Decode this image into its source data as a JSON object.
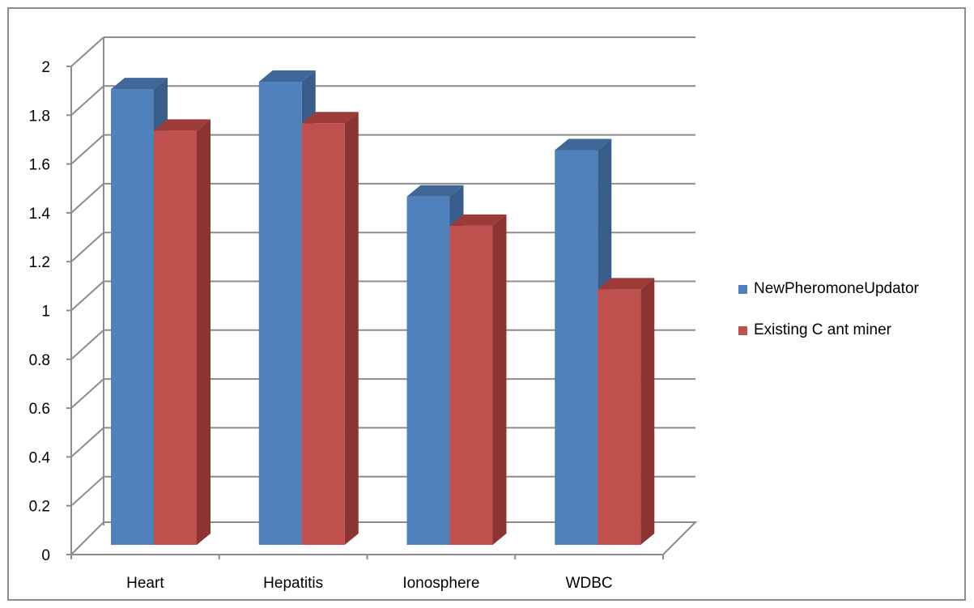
{
  "chart_data": {
    "type": "bar",
    "title": "",
    "xlabel": "",
    "ylabel": "",
    "categories": [
      "Heart",
      "Hepatitis",
      "Ionosphere",
      "WDBC"
    ],
    "series": [
      {
        "name": "NewPheromoneUpdator",
        "values": [
          1.94,
          1.97,
          1.5,
          1.69
        ],
        "color": "#4F81BD",
        "side_color": "#385D8A",
        "top_color": "#3F6797"
      },
      {
        "name": "Existing C ant miner",
        "values": [
          1.77,
          1.8,
          1.38,
          1.12
        ],
        "color": "#C0504D",
        "side_color": "#8B3432",
        "top_color": "#9C3B38"
      }
    ],
    "ylim": [
      0,
      2
    ],
    "y_ticks": [
      "0",
      "0.2",
      "0.4",
      "0.6",
      "0.8",
      "1",
      "1.2",
      "1.4",
      "1.6",
      "1.8",
      "2"
    ],
    "grid": true,
    "legend_position": "right",
    "style": "3d-clustered-column"
  }
}
